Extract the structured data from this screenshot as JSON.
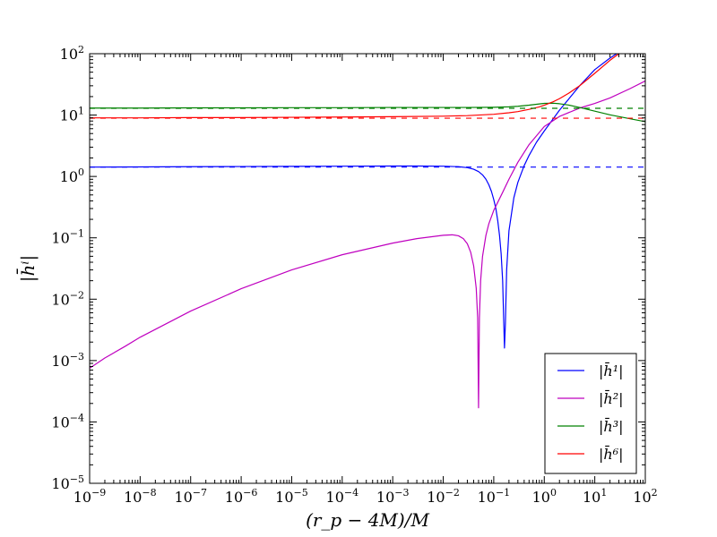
{
  "chart_data": {
    "type": "line",
    "xscale": "log",
    "yscale": "log",
    "xlim": [
      1e-09,
      100
    ],
    "ylim": [
      1e-05,
      100
    ],
    "xlabel": "(r_p − 4M)/M",
    "ylabel": "|h̄ⁱ|",
    "grid": false,
    "legend": {
      "position": "lower-right"
    },
    "x_ticks": [
      {
        "value": 1e-09,
        "base": "10",
        "exp": "−9"
      },
      {
        "value": 1e-08,
        "base": "10",
        "exp": "−8"
      },
      {
        "value": 1e-07,
        "base": "10",
        "exp": "−7"
      },
      {
        "value": 1e-06,
        "base": "10",
        "exp": "−6"
      },
      {
        "value": 1e-05,
        "base": "10",
        "exp": "−5"
      },
      {
        "value": 0.0001,
        "base": "10",
        "exp": "−4"
      },
      {
        "value": 0.001,
        "base": "10",
        "exp": "−3"
      },
      {
        "value": 0.01,
        "base": "10",
        "exp": "−2"
      },
      {
        "value": 0.1,
        "base": "10",
        "exp": "−1"
      },
      {
        "value": 1,
        "base": "10",
        "exp": "0"
      },
      {
        "value": 10,
        "base": "10",
        "exp": "1"
      },
      {
        "value": 100,
        "base": "10",
        "exp": "2"
      }
    ],
    "y_ticks": [
      {
        "value": 1e-05,
        "base": "10",
        "exp": "−5"
      },
      {
        "value": 0.0001,
        "base": "10",
        "exp": "−4"
      },
      {
        "value": 0.001,
        "base": "10",
        "exp": "−3"
      },
      {
        "value": 0.01,
        "base": "10",
        "exp": "−2"
      },
      {
        "value": 0.1,
        "base": "10",
        "exp": "−1"
      },
      {
        "value": 1,
        "base": "10",
        "exp": "0"
      },
      {
        "value": 10,
        "base": "10",
        "exp": "1"
      },
      {
        "value": 100,
        "base": "10",
        "exp": "2"
      }
    ],
    "series": [
      {
        "name": "|h̄¹|",
        "color": "#0000ff",
        "style": "solid",
        "x": [
          1e-09,
          1e-08,
          1e-07,
          1e-06,
          1e-05,
          0.0001,
          0.001,
          0.003,
          0.01,
          0.02,
          0.03,
          0.04,
          0.05,
          0.06,
          0.07,
          0.08,
          0.09,
          0.1,
          0.11,
          0.12,
          0.13,
          0.14,
          0.15,
          0.158,
          0.163,
          0.17,
          0.18,
          0.2,
          0.25,
          0.3,
          0.4,
          0.5,
          0.7,
          1,
          2,
          3,
          5,
          10,
          20,
          27
        ],
        "y": [
          1.42,
          1.43,
          1.44,
          1.45,
          1.46,
          1.47,
          1.48,
          1.48,
          1.47,
          1.44,
          1.39,
          1.31,
          1.2,
          1.06,
          0.9,
          0.73,
          0.57,
          0.42,
          0.3,
          0.19,
          0.11,
          0.055,
          0.02,
          0.004,
          0.0016,
          0.004,
          0.03,
          0.13,
          0.45,
          0.8,
          1.5,
          2.2,
          3.6,
          5.5,
          12,
          18,
          30,
          55,
          85,
          100
        ]
      },
      {
        "name": "|h̄²|",
        "color": "#bf00bf",
        "style": "solid",
        "x": [
          1e-09,
          2e-09,
          5e-09,
          1e-08,
          1e-07,
          1e-06,
          1e-05,
          0.0001,
          0.001,
          0.003,
          0.01,
          0.015,
          0.02,
          0.025,
          0.03,
          0.035,
          0.04,
          0.045,
          0.048,
          0.05,
          0.052,
          0.055,
          0.06,
          0.07,
          0.08,
          0.1,
          0.15,
          0.2,
          0.3,
          0.5,
          1,
          2,
          5,
          10,
          20,
          50,
          100
        ],
        "y": [
          0.00075,
          0.0011,
          0.0017,
          0.0024,
          0.0064,
          0.0148,
          0.03,
          0.053,
          0.082,
          0.097,
          0.11,
          0.112,
          0.108,
          0.097,
          0.08,
          0.058,
          0.035,
          0.015,
          0.005,
          0.00017,
          0.005,
          0.02,
          0.05,
          0.11,
          0.17,
          0.28,
          0.55,
          0.9,
          1.7,
          3.3,
          6.5,
          9.5,
          13,
          15.5,
          19,
          27,
          36
        ]
      },
      {
        "name": "|h̄³|",
        "color": "#008000",
        "style": "solid",
        "x": [
          1e-09,
          1e-08,
          1e-07,
          1e-06,
          1e-05,
          0.0001,
          0.001,
          0.01,
          0.03,
          0.1,
          0.2,
          0.3,
          0.5,
          0.8,
          1,
          1.5,
          2,
          3,
          5,
          10,
          20,
          50,
          100
        ],
        "y": [
          13.0,
          13.0,
          13.1,
          13.1,
          13.2,
          13.2,
          13.3,
          13.3,
          13.3,
          13.4,
          13.6,
          13.9,
          14.5,
          15.2,
          15.5,
          15.6,
          15.3,
          14.6,
          13.3,
          11.6,
          10.1,
          8.7,
          7.8
        ]
      },
      {
        "name": "|h̄⁶|",
        "color": "#ff0000",
        "style": "solid",
        "x": [
          1e-09,
          1e-08,
          1e-07,
          1e-06,
          1e-05,
          0.0001,
          0.001,
          0.01,
          0.03,
          0.1,
          0.2,
          0.3,
          0.5,
          0.8,
          1,
          1.5,
          2,
          3,
          5,
          10,
          20,
          30
        ],
        "y": [
          9.0,
          9.0,
          9.1,
          9.1,
          9.2,
          9.3,
          9.4,
          9.6,
          9.8,
          10.3,
          10.9,
          11.4,
          12.4,
          13.6,
          14.5,
          16.5,
          18.5,
          22.5,
          30,
          48,
          78,
          100
        ]
      },
      {
        "color": "#0000ff",
        "style": "dashed",
        "x": [
          1e-09,
          100
        ],
        "y": [
          1.42,
          1.42
        ]
      },
      {
        "color": "#008000",
        "style": "dashed",
        "x": [
          1e-09,
          100
        ],
        "y": [
          12.9,
          12.9
        ]
      },
      {
        "color": "#ff0000",
        "style": "dashed",
        "x": [
          1e-09,
          100
        ],
        "y": [
          8.9,
          8.9
        ]
      }
    ]
  }
}
